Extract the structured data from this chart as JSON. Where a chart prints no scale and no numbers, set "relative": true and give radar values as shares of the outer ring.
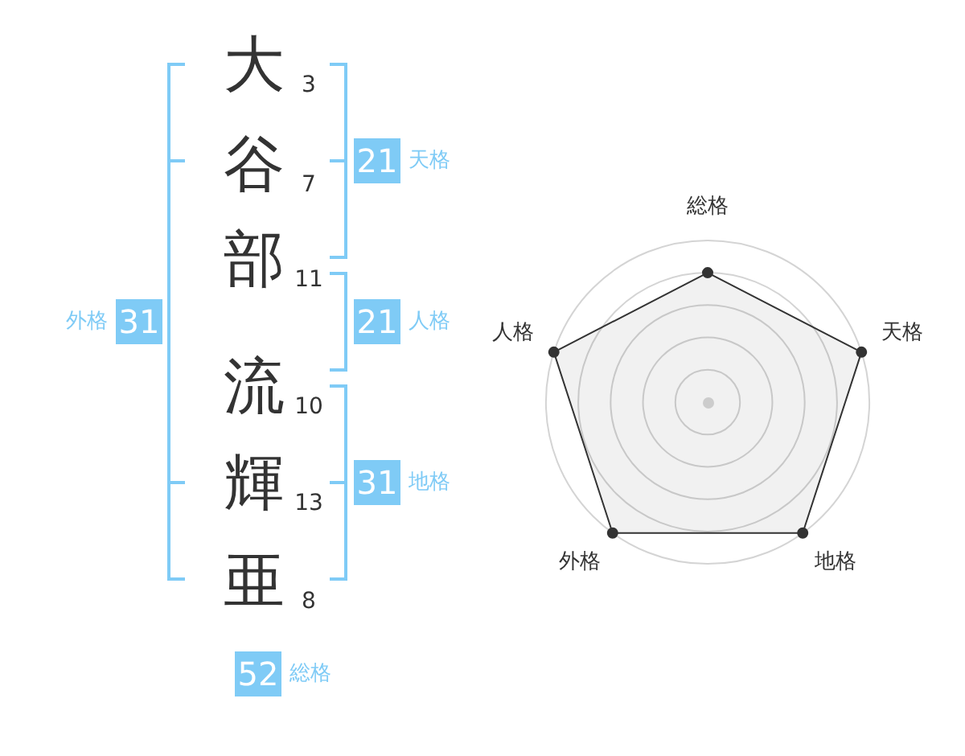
{
  "chart_data": [
    {
      "type": "other",
      "categories": [
        "大",
        "谷",
        "部",
        "流",
        "輝",
        "亜"
      ],
      "values": [
        3,
        7,
        11,
        10,
        13,
        8
      ],
      "data_labels": true,
      "annotations": [
        "21",
        "天格",
        "21",
        "人格",
        "31",
        "地格",
        "31",
        "外格",
        "52",
        "総格"
      ]
    },
    {
      "type": "radar",
      "categories": [
        "総格",
        "天格",
        "地格",
        "外格",
        "人格"
      ],
      "series": [
        {
          "color": "#333333",
          "values": [
            0.8,
            1,
            1,
            1,
            1
          ]
        }
      ],
      "relative": true,
      "grid": true,
      "marker": "circle"
    }
  ]
}
